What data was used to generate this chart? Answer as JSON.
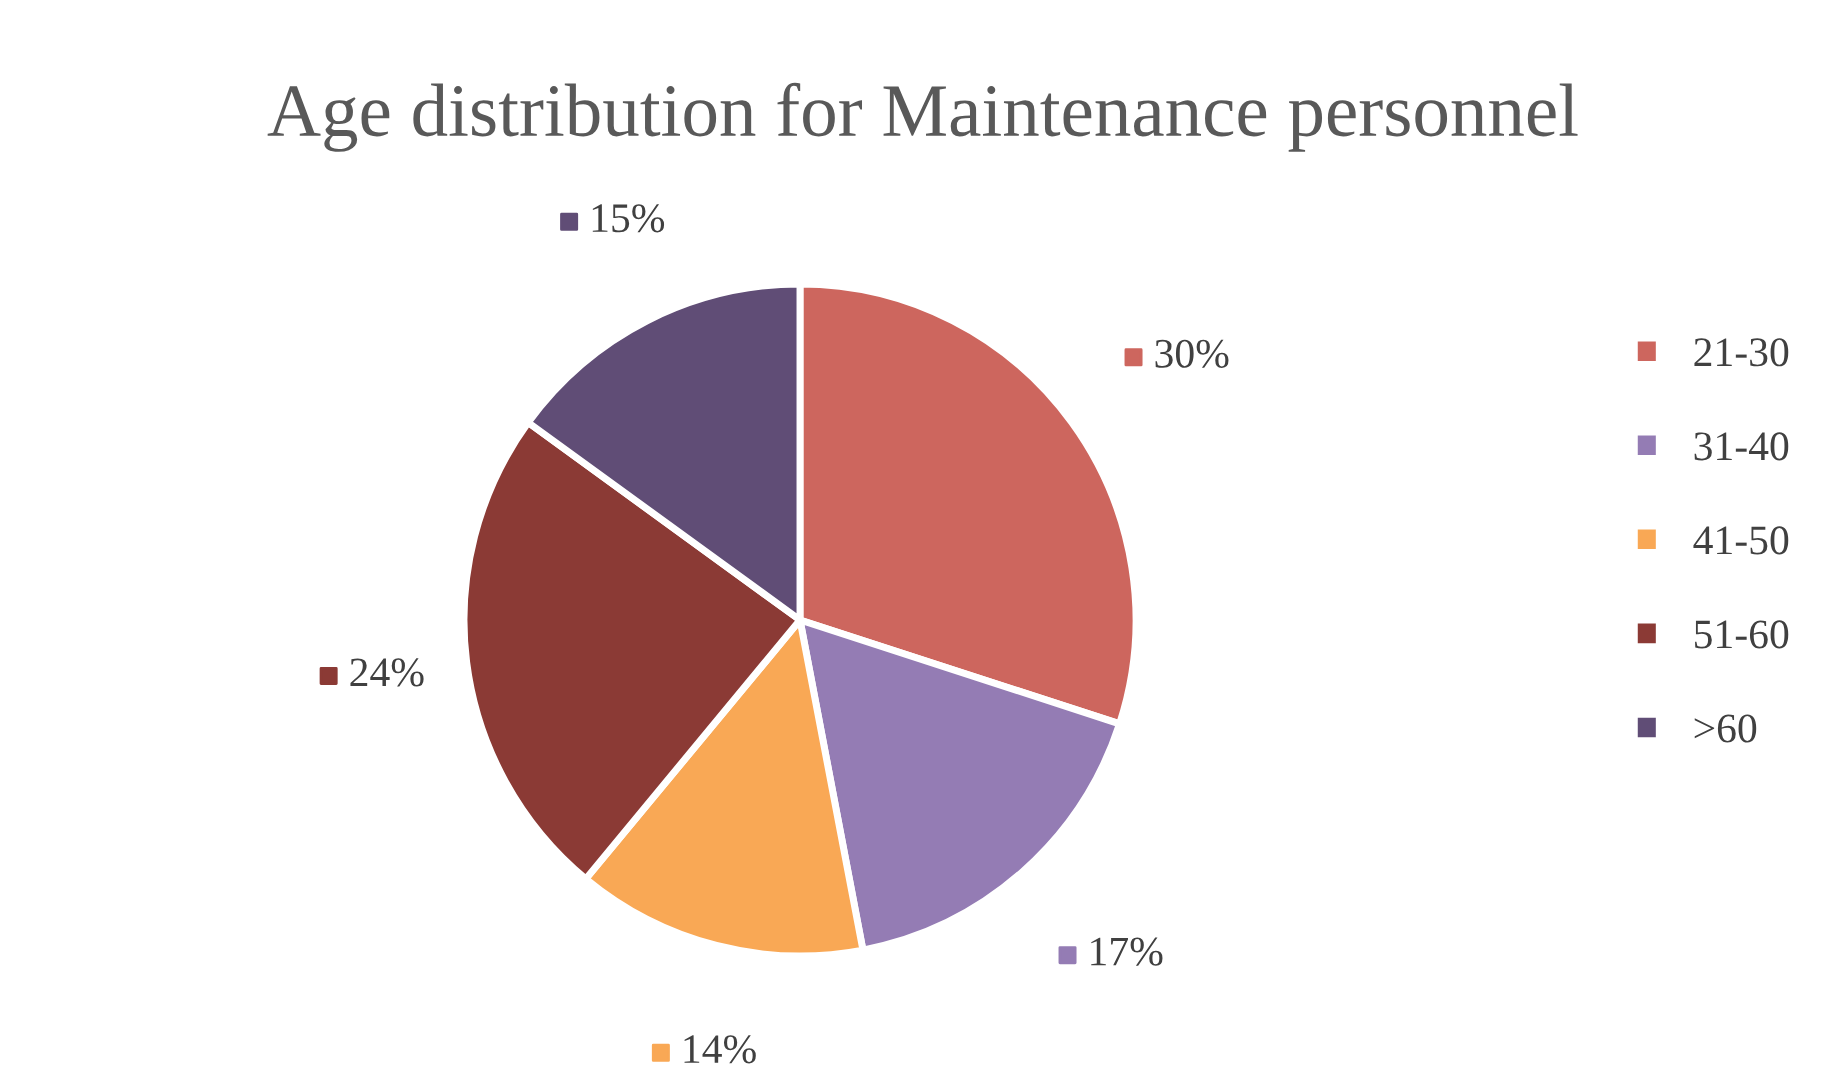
{
  "chart_data": {
    "type": "pie",
    "title": "Age distribution for Maintenance personnel",
    "categories": [
      "21-30",
      "31-40",
      "41-50",
      "51-60",
      ">60"
    ],
    "values": [
      30,
      17,
      14,
      24,
      15
    ],
    "colors": [
      "#cd665e",
      "#947cb4",
      "#f9a855",
      "#8b3a35",
      "#604d76"
    ],
    "value_labels": [
      "30%",
      "17%",
      "14%",
      "24%",
      "15%"
    ],
    "legend": "right"
  }
}
